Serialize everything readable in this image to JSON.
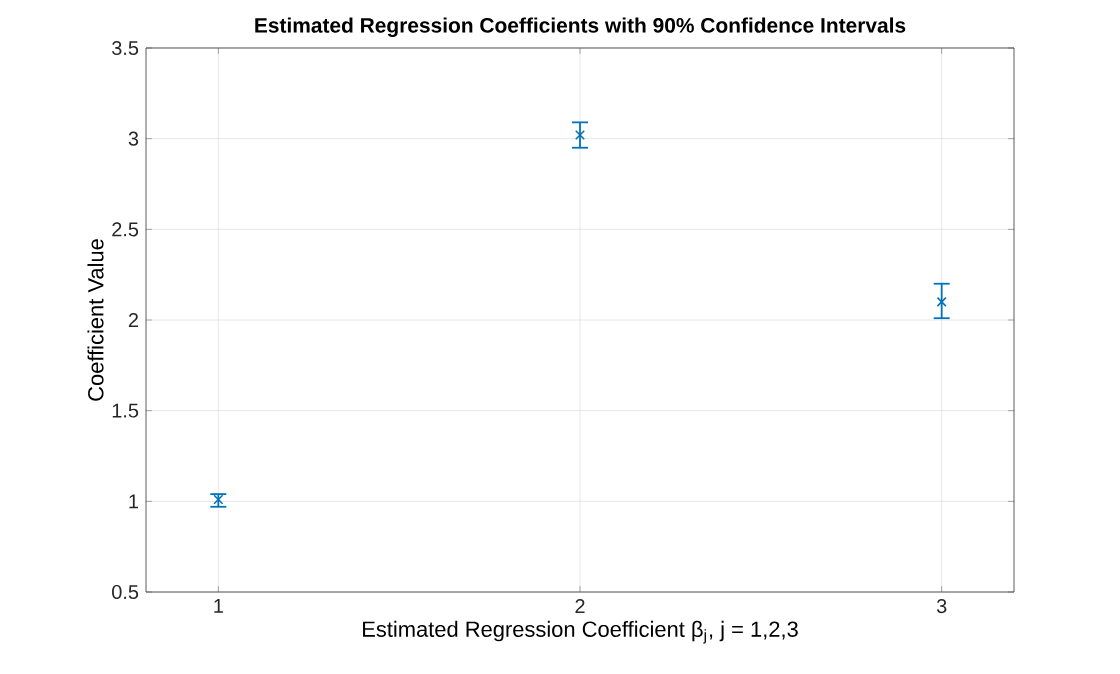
{
  "chart_data": {
    "type": "scatter",
    "title": "Estimated Regression Coefficients with 90% Confidence Intervals",
    "xlabel": "Estimated Regression Coefficient β$_{j}$, j = 1,2,3",
    "ylabel": "Coefficient Value",
    "x": [
      1,
      2,
      3
    ],
    "series": [
      {
        "color": "#0072bd",
        "values": [
          1.01,
          3.02,
          2.1
        ],
        "errors": [
          [
            0.97,
            1.04
          ],
          [
            2.95,
            3.09
          ],
          [
            2.01,
            2.2
          ]
        ]
      }
    ],
    "xlim": [
      0.8,
      3.2
    ],
    "xticks": [
      1,
      2,
      3
    ],
    "ylim": [
      0.5,
      3.5
    ],
    "yticks": [
      0.5,
      1,
      1.5,
      2,
      2.5,
      3,
      3.5
    ],
    "grid": true,
    "marker": "cross",
    "legend": false
  }
}
